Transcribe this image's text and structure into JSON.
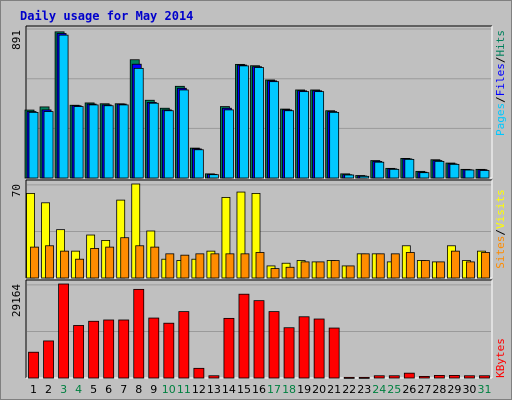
{
  "title": "Daily usage for May 2014",
  "colors": {
    "title": "#0000cc",
    "background": "#c0c0c0",
    "plot_bg": "#c0c0c0",
    "grid": "#9a9a9a",
    "hits": "#00805c",
    "files": "#0000ff",
    "pages": "#00c8ff",
    "visits": "#ffff00",
    "sites": "#ff8c00",
    "kbytes": "#ff0000",
    "weekday_label": "#000000",
    "weekend_label": "#008040"
  },
  "right_labels": {
    "pages": "Pages",
    "files": "Files",
    "hits": "Hits",
    "sites": "Sites",
    "visits": "Visits",
    "kbytes": "KBytes",
    "sep": "/"
  },
  "chart_data": {
    "type": "bar",
    "title": "Daily usage for May 2014",
    "categories": [
      "1",
      "2",
      "3",
      "4",
      "5",
      "6",
      "7",
      "8",
      "9",
      "10",
      "11",
      "12",
      "13",
      "14",
      "15",
      "16",
      "17",
      "18",
      "19",
      "20",
      "21",
      "22",
      "23",
      "24",
      "25",
      "26",
      "27",
      "28",
      "29",
      "30",
      "31"
    ],
    "weekend_days": [
      "3",
      "4",
      "10",
      "11",
      "17",
      "18",
      "24",
      "25",
      "31"
    ],
    "panels": [
      {
        "name": "requests",
        "ymax_label": "891",
        "ymax": 891,
        "series": [
          {
            "name": "Hits",
            "values": [
              409,
              428,
              880,
              438,
              452,
              447,
              447,
              712,
              468,
              420,
              552,
              180,
              25,
              430,
              684,
              676,
              590,
              415,
              530,
              530,
              405,
              25,
              15,
              105,
              58,
              118,
              40,
              110,
              90,
              52,
              52
            ]
          },
          {
            "name": "Files",
            "values": [
              400,
              410,
              870,
              435,
              445,
              440,
              445,
              685,
              455,
              410,
              540,
              175,
              22,
              420,
              680,
              670,
              585,
              410,
              525,
              525,
              400,
              20,
              12,
              100,
              55,
              115,
              35,
              105,
              85,
              50,
              50
            ]
          },
          {
            "name": "Pages",
            "values": [
              395,
              400,
              860,
              430,
              440,
              435,
              440,
              660,
              450,
              405,
              530,
              170,
              20,
              410,
              675,
              665,
              580,
              405,
              520,
              520,
              395,
              18,
              10,
              95,
              52,
              112,
              32,
              100,
              82,
              48,
              45
            ]
          }
        ]
      },
      {
        "name": "visitors",
        "ymax_label": "70",
        "ymax": 70,
        "series": [
          {
            "name": "Visits",
            "values": [
              63,
              56,
              36,
              20,
              32,
              28,
              58,
              70,
              35,
              14,
              13,
              14,
              20,
              60,
              64,
              63,
              9,
              11,
              13,
              12,
              13,
              9,
              18,
              18,
              12,
              24,
              13,
              12,
              24,
              13,
              20
            ]
          },
          {
            "name": "Sites",
            "values": [
              23,
              24,
              20,
              14,
              22,
              23,
              30,
              24,
              23,
              18,
              17,
              18,
              18,
              18,
              18,
              19,
              7,
              8,
              12,
              12,
              13,
              9,
              18,
              18,
              18,
              19,
              13,
              12,
              20,
              12,
              19
            ]
          }
        ]
      },
      {
        "name": "kbytes",
        "ymax_label": "29164",
        "ymax": 29164,
        "series": [
          {
            "name": "KBytes",
            "values": [
              8000,
              11500,
              29164,
              16300,
              17600,
              18000,
              18000,
              27500,
              18600,
              17000,
              20600,
              3000,
              700,
              18500,
              26000,
              24000,
              20600,
              15600,
              19000,
              18300,
              15500,
              200,
              200,
              700,
              700,
              1500,
              500,
              800,
              800,
              700,
              700
            ]
          }
        ]
      }
    ]
  }
}
